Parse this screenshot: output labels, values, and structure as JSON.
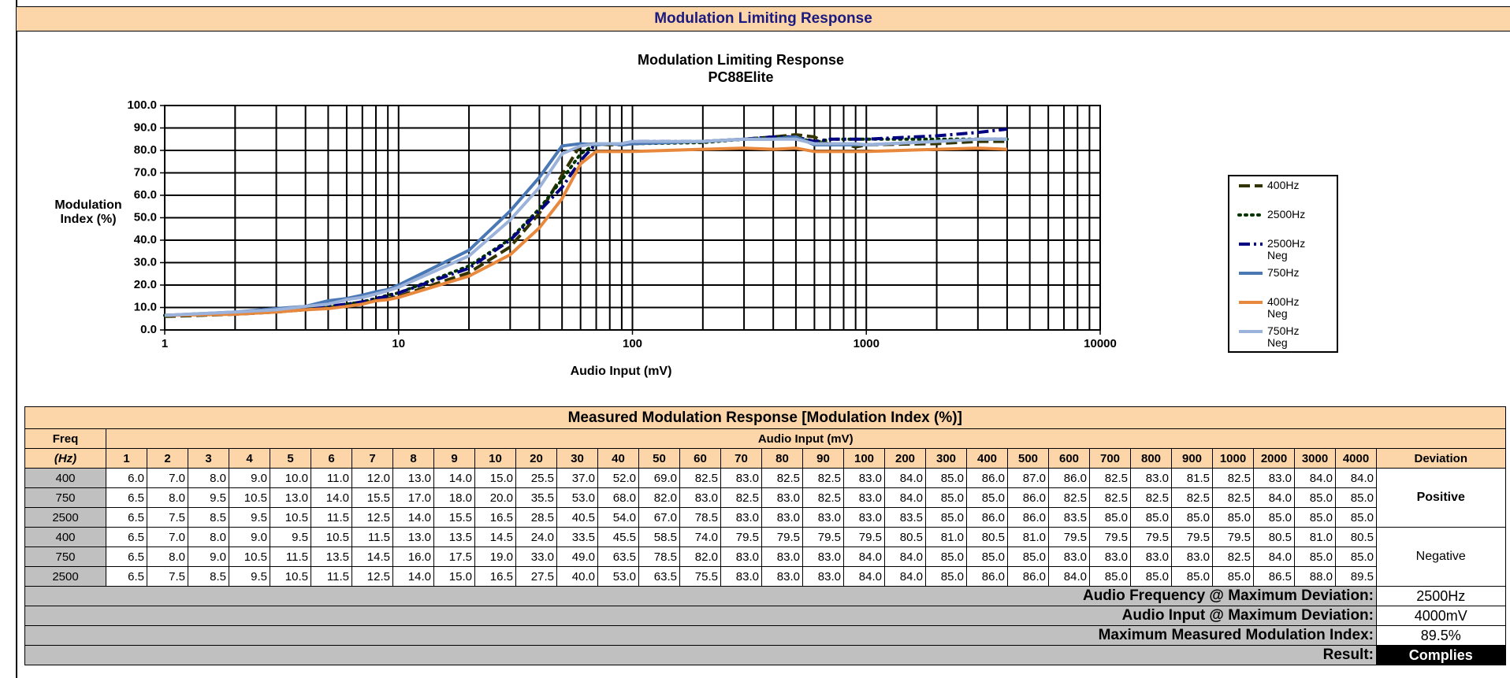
{
  "header": {
    "title": "Modulation Limiting Response"
  },
  "chart_data": {
    "type": "line",
    "title": "Modulation Limiting Response",
    "subtitle": "PC88Elite",
    "xlabel": "Audio Input (mV)",
    "ylabel": "Modulation Index (%)",
    "x": [
      1,
      2,
      3,
      4,
      5,
      6,
      7,
      8,
      9,
      10,
      20,
      30,
      40,
      50,
      60,
      70,
      80,
      90,
      100,
      200,
      300,
      400,
      500,
      600,
      700,
      800,
      900,
      1000,
      2000,
      3000,
      4000
    ],
    "xscale": "log",
    "xlim": [
      1,
      10000
    ],
    "xticks": [
      1,
      10,
      100,
      1000,
      10000
    ],
    "ylim": [
      0,
      100
    ],
    "yticks": [
      {
        "value": 0,
        "label": "0.0"
      },
      {
        "value": 10,
        "label": "10.0"
      },
      {
        "value": 20,
        "label": "20.0"
      },
      {
        "value": 30,
        "label": "30.0"
      },
      {
        "value": 40,
        "label": "40.0"
      },
      {
        "value": 50,
        "label": "50.0"
      },
      {
        "value": 60,
        "label": "60.0"
      },
      {
        "value": 70,
        "label": "70.0"
      },
      {
        "value": 80,
        "label": "80.0"
      },
      {
        "value": 90,
        "label": "90.0"
      },
      {
        "value": 100,
        "label": "100.0"
      }
    ],
    "grid": true,
    "legend": "right",
    "series": [
      {
        "name": "400Hz",
        "color": "#333300",
        "style": "dash",
        "values": [
          6,
          7,
          8,
          9,
          10,
          11,
          12,
          13,
          14,
          15,
          25.5,
          37,
          52,
          69,
          82.5,
          83,
          82.5,
          82.5,
          83,
          84,
          85,
          86,
          87,
          86,
          82.5,
          83,
          81.5,
          82.5,
          83,
          84,
          84
        ]
      },
      {
        "name": "2500Hz",
        "color": "#003300",
        "style": "dot",
        "values": [
          6.5,
          7.5,
          8.5,
          9.5,
          10.5,
          11.5,
          12.5,
          14,
          15.5,
          16.5,
          28.5,
          40.5,
          54,
          67,
          78.5,
          83,
          83,
          83,
          83,
          83.5,
          85,
          86,
          86,
          83.5,
          85,
          85,
          85,
          85,
          85,
          85,
          85
        ]
      },
      {
        "name": "2500Hz Neg",
        "color": "#000080",
        "style": "dashdot",
        "values": [
          6.5,
          7.5,
          8.5,
          9.5,
          10.5,
          11.5,
          12.5,
          14,
          15,
          16.5,
          27.5,
          40,
          53,
          63.5,
          75.5,
          83,
          83,
          83,
          84,
          84,
          85,
          86,
          86,
          84,
          85,
          85,
          85,
          85,
          86.5,
          88,
          89.5
        ]
      },
      {
        "name": "750Hz",
        "color": "#4a78b4",
        "style": "solid",
        "values": [
          6.5,
          8,
          9.5,
          10.5,
          13,
          14,
          15.5,
          17,
          18,
          20,
          35.5,
          53,
          68,
          82,
          83,
          82.5,
          83,
          82.5,
          83,
          84,
          85,
          85,
          86,
          82.5,
          82.5,
          82.5,
          82.5,
          82.5,
          84,
          85,
          85
        ]
      },
      {
        "name": "400Hz Neg",
        "color": "#e8883c",
        "style": "solid",
        "values": [
          6.5,
          7,
          8,
          9,
          9.5,
          10.5,
          11.5,
          13,
          13.5,
          14.5,
          24,
          33.5,
          45.5,
          58.5,
          74,
          79.5,
          79.5,
          79.5,
          79.5,
          80.5,
          81,
          80.5,
          81,
          79.5,
          79.5,
          79.5,
          79.5,
          79.5,
          80.5,
          81,
          80.5
        ]
      },
      {
        "name": "750Hz Neg",
        "color": "#9bb3db",
        "style": "solid",
        "values": [
          6.5,
          8,
          9,
          10.5,
          11.5,
          13.5,
          14.5,
          16,
          17.5,
          19,
          33,
          49,
          63.5,
          78.5,
          82,
          83,
          83,
          83,
          84,
          84,
          85,
          85,
          85,
          83,
          83,
          83,
          83,
          82.5,
          84,
          85,
          85
        ]
      }
    ]
  },
  "table": {
    "title": "Measured Modulation Response [Modulation Index (%)]",
    "freq_header": [
      "Freq",
      "(Hz)"
    ],
    "group_header": "Audio Input (mV)",
    "columns": [
      "1",
      "2",
      "3",
      "4",
      "5",
      "6",
      "7",
      "8",
      "9",
      "10",
      "20",
      "30",
      "40",
      "50",
      "60",
      "70",
      "80",
      "90",
      "100",
      "200",
      "300",
      "400",
      "500",
      "600",
      "700",
      "800",
      "900",
      "1000",
      "2000",
      "3000",
      "4000"
    ],
    "deviation_header": "Deviation",
    "groups": [
      {
        "label": "Positive",
        "rows": [
          {
            "freq": "400",
            "cells": [
              "6.0",
              "7.0",
              "8.0",
              "9.0",
              "10.0",
              "11.0",
              "12.0",
              "13.0",
              "14.0",
              "15.0",
              "25.5",
              "37.0",
              "52.0",
              "69.0",
              "82.5",
              "83.0",
              "82.5",
              "82.5",
              "83.0",
              "84.0",
              "85.0",
              "86.0",
              "87.0",
              "86.0",
              "82.5",
              "83.0",
              "81.5",
              "82.5",
              "83.0",
              "84.0",
              "84.0"
            ]
          },
          {
            "freq": "750",
            "cells": [
              "6.5",
              "8.0",
              "9.5",
              "10.5",
              "13.0",
              "14.0",
              "15.5",
              "17.0",
              "18.0",
              "20.0",
              "35.5",
              "53.0",
              "68.0",
              "82.0",
              "83.0",
              "82.5",
              "83.0",
              "82.5",
              "83.0",
              "84.0",
              "85.0",
              "85.0",
              "86.0",
              "82.5",
              "82.5",
              "82.5",
              "82.5",
              "82.5",
              "84.0",
              "85.0",
              "85.0"
            ]
          },
          {
            "freq": "2500",
            "cells": [
              "6.5",
              "7.5",
              "8.5",
              "9.5",
              "10.5",
              "11.5",
              "12.5",
              "14.0",
              "15.5",
              "16.5",
              "28.5",
              "40.5",
              "54.0",
              "67.0",
              "78.5",
              "83.0",
              "83.0",
              "83.0",
              "83.0",
              "83.5",
              "85.0",
              "86.0",
              "86.0",
              "83.5",
              "85.0",
              "85.0",
              "85.0",
              "85.0",
              "85.0",
              "85.0",
              "85.0"
            ]
          }
        ]
      },
      {
        "label": "Negative",
        "rows": [
          {
            "freq": "400",
            "cells": [
              "6.5",
              "7.0",
              "8.0",
              "9.0",
              "9.5",
              "10.5",
              "11.5",
              "13.0",
              "13.5",
              "14.5",
              "24.0",
              "33.5",
              "45.5",
              "58.5",
              "74.0",
              "79.5",
              "79.5",
              "79.5",
              "79.5",
              "80.5",
              "81.0",
              "80.5",
              "81.0",
              "79.5",
              "79.5",
              "79.5",
              "79.5",
              "79.5",
              "80.5",
              "81.0",
              "80.5"
            ]
          },
          {
            "freq": "750",
            "cells": [
              "6.5",
              "8.0",
              "9.0",
              "10.5",
              "11.5",
              "13.5",
              "14.5",
              "16.0",
              "17.5",
              "19.0",
              "33.0",
              "49.0",
              "63.5",
              "78.5",
              "82.0",
              "83.0",
              "83.0",
              "83.0",
              "84.0",
              "84.0",
              "85.0",
              "85.0",
              "85.0",
              "83.0",
              "83.0",
              "83.0",
              "83.0",
              "82.5",
              "84.0",
              "85.0",
              "85.0"
            ]
          },
          {
            "freq": "2500",
            "cells": [
              "6.5",
              "7.5",
              "8.5",
              "9.5",
              "10.5",
              "11.5",
              "12.5",
              "14.0",
              "15.0",
              "16.5",
              "27.5",
              "40.0",
              "53.0",
              "63.5",
              "75.5",
              "83.0",
              "83.0",
              "83.0",
              "84.0",
              "84.0",
              "85.0",
              "86.0",
              "86.0",
              "84.0",
              "85.0",
              "85.0",
              "85.0",
              "85.0",
              "86.5",
              "88.0",
              "89.5"
            ]
          }
        ]
      }
    ],
    "summary": [
      {
        "label": "Audio Frequency @ Maximum Deviation:",
        "value": "2500Hz"
      },
      {
        "label": "Audio Input @ Maximum Deviation:",
        "value": "4000mV"
      },
      {
        "label": "Maximum Measured Modulation Index:",
        "value": "89.5%"
      },
      {
        "label": "Result:",
        "value": "Complies"
      }
    ]
  }
}
